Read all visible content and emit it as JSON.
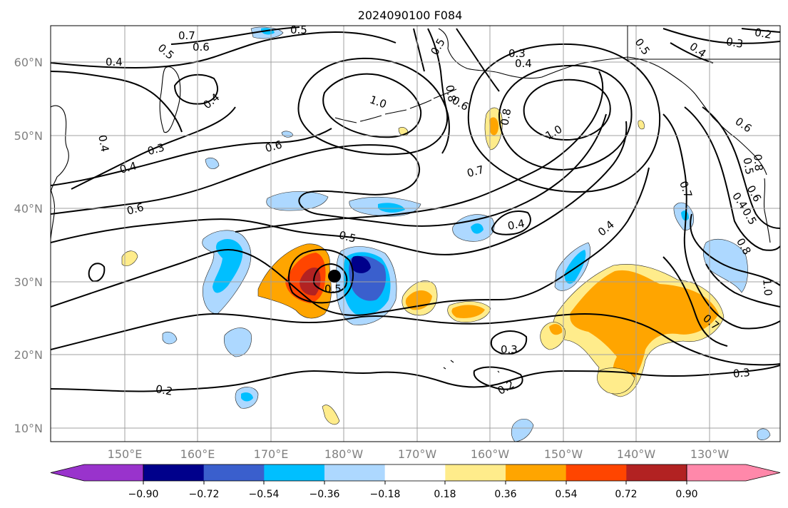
{
  "title": "2024090100 F084",
  "lat_ticks": [
    "60°N",
    "50°N",
    "40°N",
    "30°N",
    "20°N",
    "10°N"
  ],
  "lon_ticks": [
    "150°E",
    "160°E",
    "170°E",
    "180°W",
    "170°W",
    "160°W",
    "150°W",
    "140°W",
    "130°W"
  ],
  "colorbar": {
    "colors": [
      "#9933cc",
      "#00008b",
      "#3a5fcd",
      "#00bfff",
      "#add8ff",
      "#ffffff",
      "#ffec8b",
      "#ffa500",
      "#ff4500",
      "#b22222",
      "#ff88aa"
    ],
    "tick_labels": [
      "−0.90",
      "−0.72",
      "−0.54",
      "−0.36",
      "−0.18",
      "0.18",
      "0.36",
      "0.54",
      "0.72",
      "0.90"
    ]
  },
  "contour_labels": {
    "l1": "0.5",
    "l2": "0.7",
    "l3": "0.6",
    "l4": "0.5",
    "l5": "0.4",
    "l6": "0.4",
    "l7": "0.4",
    "l8": "0.3",
    "l9": "0.4",
    "l10": "0.6",
    "l11": "0.6",
    "l12": "1.0",
    "l13": "0.8",
    "l14": "0.5",
    "l15": "0.3",
    "l16": "0.4",
    "l17": "0.6",
    "l18": "1.0",
    "l19": "0.8",
    "l20": "0.5",
    "l21": "0.4",
    "l22": "0.3",
    "l23": "0.2",
    "l24": "0.6",
    "l25": "0.7",
    "l26": "0.7",
    "l27": "0.4",
    "l28": "0.5",
    "l29": "0.8",
    "l30": "0.4",
    "l31": "0.5",
    "l32": "0.6",
    "l33": "0.8",
    "l34": "1.0",
    "l35": "0.7",
    "l36": "0.3",
    "l37": "0.3",
    "l38": "0.2",
    "l39": "0.2",
    "l40": "0.5",
    "l41": "0.7"
  },
  "marker": "storm-center-dot"
}
